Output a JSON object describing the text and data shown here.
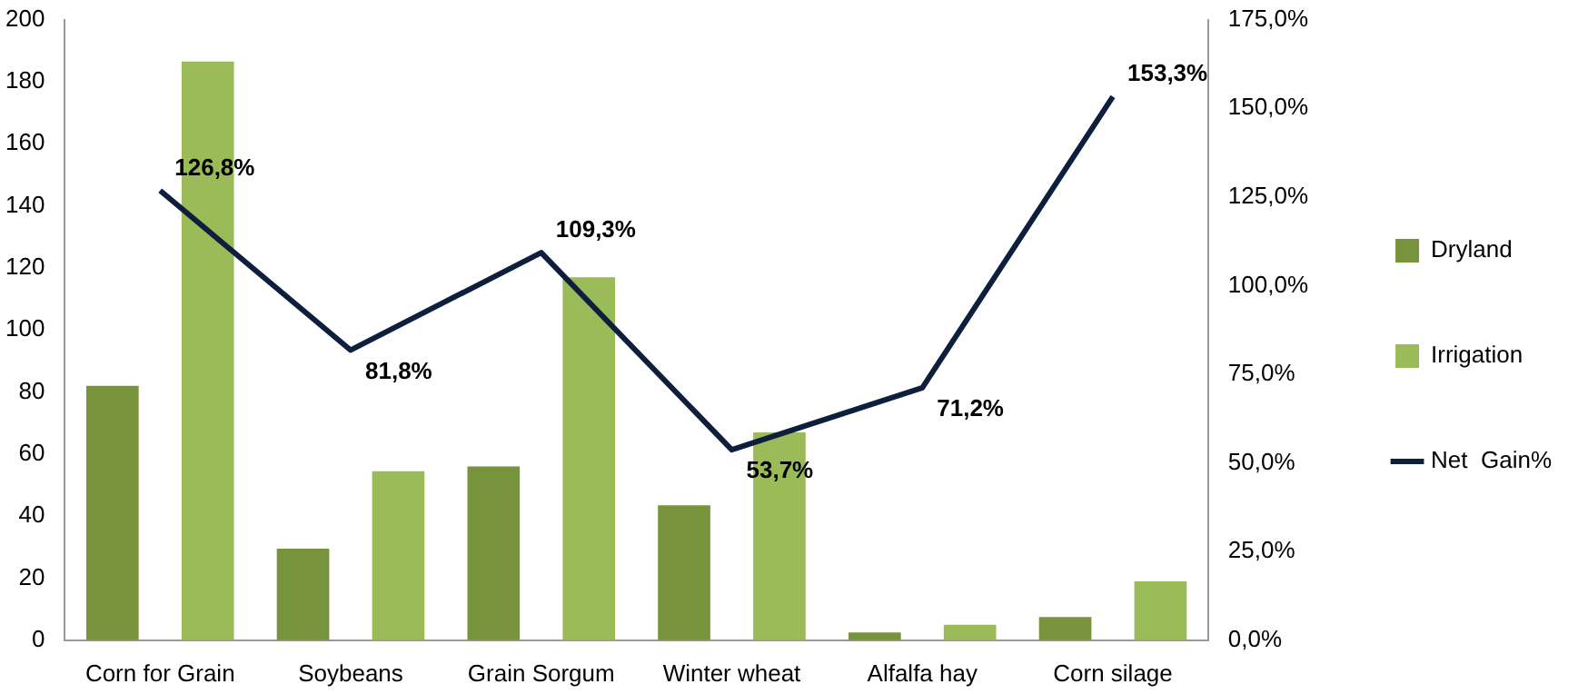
{
  "chart_data": {
    "type": "bar",
    "categories": [
      "Corn for Grain",
      "Soybeans",
      "Grain Sorgum",
      "Winter wheat",
      "Alfalfa hay",
      "Corn silage"
    ],
    "ylim": [
      0,
      200
    ],
    "yticks": [
      0,
      20,
      40,
      60,
      80,
      100,
      120,
      140,
      160,
      180,
      200
    ],
    "y2lim": [
      0,
      175
    ],
    "y2ticks": [
      {
        "value": 0,
        "label": "0,0%"
      },
      {
        "value": 25,
        "label": "25,0%"
      },
      {
        "value": 50,
        "label": "50,0%"
      },
      {
        "value": 75,
        "label": "75,0%"
      },
      {
        "value": 100,
        "label": "100,0%"
      },
      {
        "value": 125,
        "label": "125,0%"
      },
      {
        "value": 150,
        "label": "150,0%"
      },
      {
        "value": 175,
        "label": "175,0%"
      }
    ],
    "grid": false,
    "legend": "right",
    "series": [
      {
        "name": "Dryland",
        "color": "#77933c",
        "values": [
          82,
          29.5,
          56,
          43.5,
          2.5,
          7.5
        ]
      },
      {
        "name": "Irrigation",
        "color": "#9bbb59",
        "values": [
          186.5,
          54.5,
          117,
          67,
          5,
          19
        ]
      },
      {
        "name": "Net  Gain%",
        "type": "line",
        "axis": "y2",
        "color": "#0d1f3c",
        "marker": "none",
        "values": [
          126.8,
          81.8,
          109.3,
          53.7,
          71.2,
          153.3
        ],
        "value_labels": [
          "126,8%",
          "81,8%",
          "109,3%",
          "53,7%",
          "71,2%",
          "153,3%"
        ]
      }
    ]
  }
}
